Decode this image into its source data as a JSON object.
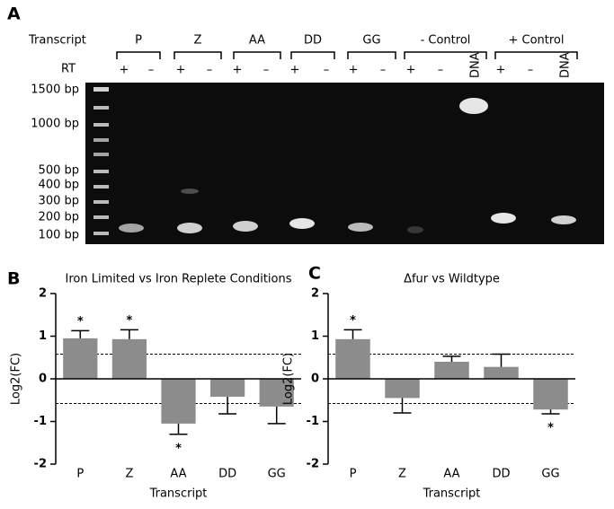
{
  "panel_a": {
    "label": "A",
    "row_labels": [
      "Transcript",
      "RT"
    ],
    "groups": [
      {
        "name": "P",
        "lanes": [
          "+",
          "–"
        ]
      },
      {
        "name": "Z",
        "lanes": [
          "+",
          "–"
        ]
      },
      {
        "name": "AA",
        "lanes": [
          "+",
          "–"
        ]
      },
      {
        "name": "DD",
        "lanes": [
          "+",
          "–"
        ]
      },
      {
        "name": "GG",
        "lanes": [
          "+",
          "–"
        ]
      },
      {
        "name": "- Control",
        "lanes": [
          "+",
          "–",
          "DNA"
        ]
      },
      {
        "name": "+ Control",
        "lanes": [
          "+",
          "–",
          "DNA"
        ]
      }
    ],
    "ladder": [
      "1500 bp",
      "1000 bp",
      "500 bp",
      "400 bp",
      "300 bp",
      "200 bp",
      "100 bp"
    ]
  },
  "chart_data": [
    {
      "type": "bar",
      "panel_label": "B",
      "title": "Iron Limited vs Iron Replete Conditions",
      "x_label": "Transcript",
      "y_label": "Log2(FC)",
      "categories": [
        "P",
        "Z",
        "AA",
        "DD",
        "GG"
      ],
      "values": [
        0.95,
        0.93,
        -1.05,
        -0.42,
        -0.65
      ],
      "errors": [
        0.18,
        0.22,
        0.25,
        0.4,
        0.4
      ],
      "annotations": [
        {
          "text": "*",
          "category": "P"
        },
        {
          "text": "*",
          "category": "Z"
        },
        {
          "text": "*",
          "category": "AA"
        }
      ],
      "reference_lines": [
        0.58,
        -0.58
      ],
      "color": "#8c8c8c",
      "ylim": [
        -2,
        2
      ],
      "yticks": [
        -2,
        -1,
        0,
        1,
        2
      ]
    },
    {
      "type": "bar",
      "panel_label": "C",
      "title": "Δfur vs Wildtype",
      "x_label": "Transcript",
      "y_label": "Log2(FC)",
      "categories": [
        "P",
        "Z",
        "AA",
        "DD",
        "GG"
      ],
      "values": [
        0.93,
        -0.45,
        0.4,
        0.28,
        -0.72
      ],
      "errors": [
        0.22,
        0.35,
        0.13,
        0.3,
        0.1
      ],
      "annotations": [
        {
          "text": "*",
          "category": "P"
        },
        {
          "text": "*",
          "category": "GG"
        }
      ],
      "reference_lines": [
        0.58,
        -0.58
      ],
      "color": "#8c8c8c",
      "ylim": [
        -2,
        2
      ],
      "yticks": [
        -2,
        -1,
        0,
        1,
        2
      ]
    }
  ]
}
